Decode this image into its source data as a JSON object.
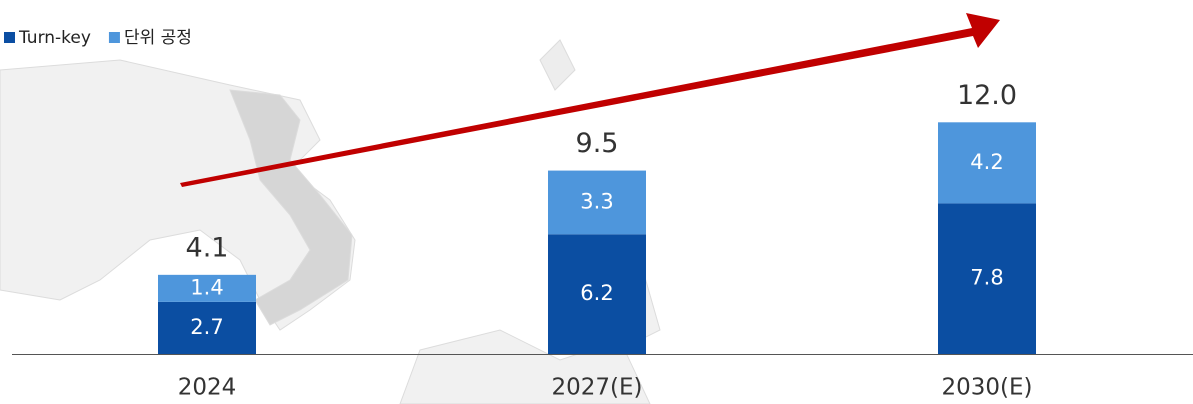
{
  "chart_data": {
    "type": "stacked_bar",
    "categories": [
      "2024",
      "2027(E)",
      "2030(E)"
    ],
    "series": [
      {
        "name": "Turn-key",
        "color": "#0b4ea2",
        "values": [
          2.7,
          6.2,
          7.8
        ]
      },
      {
        "name": "단위 공정",
        "color": "#4e96dc",
        "values": [
          1.4,
          3.3,
          4.2
        ]
      }
    ],
    "totals": [
      4.1,
      9.5,
      12.0
    ],
    "total_labels": [
      "4.1",
      "9.5",
      "12.0"
    ],
    "ylim": [
      0,
      13
    ],
    "legend": "top-left"
  }
}
